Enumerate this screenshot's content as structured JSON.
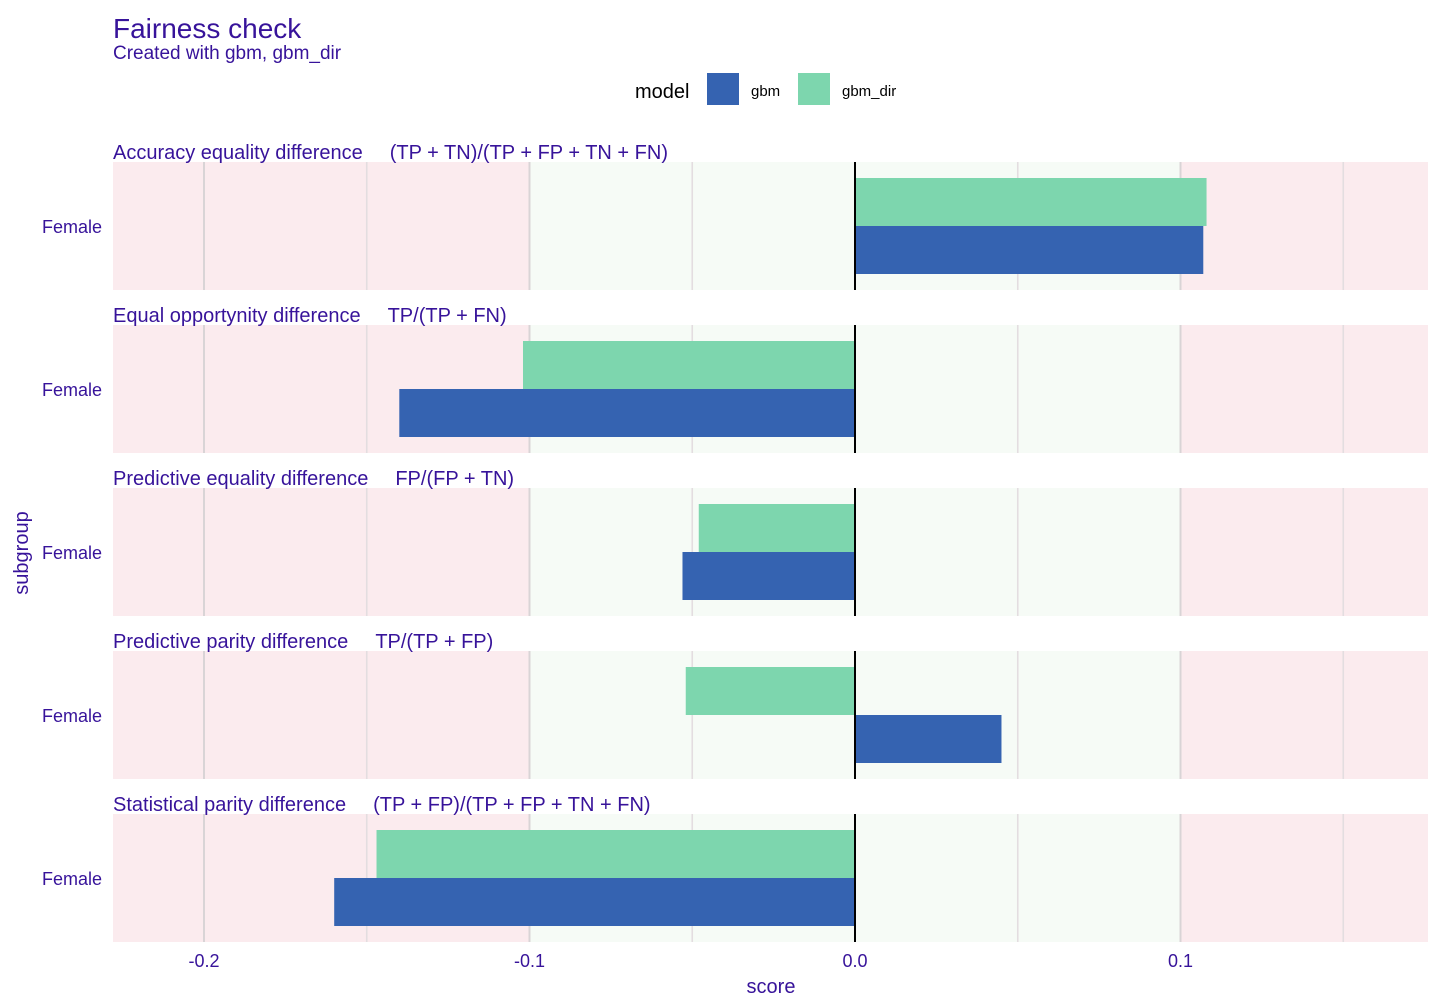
{
  "chart_data": {
    "type": "bar",
    "title": "Fairness check",
    "subtitle": "Created with gbm, gbm_dir",
    "xlabel": "score",
    "ylabel": "subgroup",
    "xlim": [
      -0.2,
      0.1
    ],
    "x_ticks": [
      "-0.2",
      "-0.1",
      "0.0",
      "0.1"
    ],
    "fair_range": [
      -0.1,
      0.1
    ],
    "legend": {
      "title": "model",
      "position": "top"
    },
    "series": [
      {
        "name": "gbm",
        "color": "#3563b1"
      },
      {
        "name": "gbm_dir",
        "color": "#7dd6ae"
      }
    ],
    "panels": [
      {
        "metric": "Accuracy equality difference",
        "formula": "(TP + TN)/(TP + FP + TN + FN)",
        "category": "Female",
        "values": {
          "gbm": 0.107,
          "gbm_dir": 0.108
        }
      },
      {
        "metric": "Equal opportynity difference",
        "formula": "TP/(TP + FN)",
        "category": "Female",
        "values": {
          "gbm": -0.14,
          "gbm_dir": -0.102
        }
      },
      {
        "metric": "Predictive equality difference",
        "formula": "FP/(FP + TN)",
        "category": "Female",
        "values": {
          "gbm": -0.053,
          "gbm_dir": -0.048
        }
      },
      {
        "metric": "Predictive parity difference",
        "formula": "TP/(TP + FP)",
        "category": "Female",
        "values": {
          "gbm": 0.045,
          "gbm_dir": -0.052
        }
      },
      {
        "metric": "Statistical parity difference",
        "formula": "(TP + FP)/(TP + FP + TN + FN)",
        "category": "Female",
        "values": {
          "gbm": -0.16,
          "gbm_dir": -0.147
        }
      }
    ],
    "colors": {
      "text": "#37139a",
      "unfair_bg": "#fbebee",
      "fair_bg": "#f6fbf6",
      "zero_line": "#000000"
    }
  }
}
